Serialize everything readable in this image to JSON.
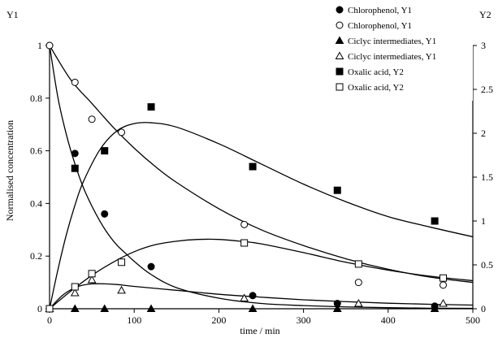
{
  "chart_data": {
    "type": "scatter",
    "xlabel": "time / min",
    "ylabel": "Normalised concentration",
    "y1_title": "Y1",
    "y2_title": "Y2",
    "xlim": [
      0,
      500
    ],
    "ylim": [
      0,
      1
    ],
    "y2lim": [
      0,
      3
    ],
    "x_ticks": [
      0,
      100,
      200,
      300,
      400,
      500
    ],
    "y_ticks": [
      0,
      0.2,
      0.4,
      0.6,
      0.8,
      1
    ],
    "y2_ticks": [
      0,
      0.5,
      1,
      1.5,
      2,
      2.5,
      3
    ],
    "x_tick_labels": [
      "0",
      "100",
      "200",
      "300",
      "400",
      "500"
    ],
    "y_tick_labels": [
      "0",
      "0.2",
      "0.4",
      "0.6",
      "0.8",
      "1"
    ],
    "y2_tick_labels": [
      "0",
      "0.5",
      "1",
      "1.5",
      "2",
      "2.5",
      "3"
    ],
    "grid": false,
    "legend_position": "top-right",
    "series": [
      {
        "name": "Chlorophenol, Y1",
        "axis": "y1",
        "marker": "circle-filled",
        "x": [
          0,
          30,
          65,
          120,
          240,
          340,
          455
        ],
        "y": [
          1.0,
          0.59,
          0.36,
          0.16,
          0.05,
          0.02,
          0.01
        ]
      },
      {
        "name": "Chlorophenol, Y1",
        "axis": "y1",
        "marker": "circle-open",
        "x": [
          0,
          30,
          50,
          85,
          230,
          365,
          465
        ],
        "y": [
          1.0,
          0.86,
          0.72,
          0.67,
          0.32,
          0.1,
          0.09
        ]
      },
      {
        "name": "Ciclyc intermediates, Y1",
        "axis": "y1",
        "marker": "triangle-filled",
        "x": [
          0,
          30,
          65,
          120,
          240,
          340,
          455
        ],
        "y": [
          0,
          0.0,
          0.0,
          0.0,
          0.0,
          0.0,
          0.0
        ]
      },
      {
        "name": "Ciclyc intermediates, Y1",
        "axis": "y1",
        "marker": "triangle-open",
        "x": [
          0,
          30,
          50,
          85,
          230,
          365,
          465
        ],
        "y": [
          0,
          0.06,
          0.11,
          0.07,
          0.04,
          0.02,
          0.02
        ]
      },
      {
        "name": "Oxalic acid, Y2",
        "axis": "y2",
        "marker": "square-filled",
        "x": [
          0,
          30,
          65,
          120,
          240,
          340,
          455
        ],
        "y": [
          0,
          1.6,
          1.8,
          2.3,
          1.62,
          1.35,
          1.0
        ]
      },
      {
        "name": "Oxalic acid, Y2",
        "axis": "y2",
        "marker": "square-open",
        "x": [
          0,
          30,
          50,
          85,
          230,
          365,
          465
        ],
        "y": [
          0,
          0.25,
          0.4,
          0.53,
          0.75,
          0.51,
          0.35
        ]
      }
    ],
    "fit_curves": [
      {
        "axis": "y1",
        "x": [
          0,
          10,
          20,
          30,
          40,
          50,
          60,
          70,
          80,
          90,
          100,
          120,
          150,
          200,
          250,
          300,
          350,
          400,
          450,
          500
        ],
        "y": [
          1.0,
          0.8,
          0.66,
          0.55,
          0.46,
          0.39,
          0.33,
          0.28,
          0.24,
          0.21,
          0.18,
          0.13,
          0.08,
          0.04,
          0.02,
          0.012,
          0.007,
          0.004,
          0.002,
          0.0015
        ]
      },
      {
        "axis": "y1",
        "x": [
          0,
          25,
          50,
          75,
          100,
          125,
          150,
          200,
          250,
          300,
          350,
          400,
          450,
          500
        ],
        "y": [
          1.0,
          0.87,
          0.78,
          0.69,
          0.61,
          0.54,
          0.48,
          0.38,
          0.3,
          0.24,
          0.19,
          0.15,
          0.12,
          0.1
        ]
      },
      {
        "axis": "y1",
        "x": [
          0,
          15,
          30,
          45,
          60,
          80,
          100,
          150,
          200,
          250,
          300,
          350,
          400,
          450,
          500
        ],
        "y": [
          0,
          0.05,
          0.08,
          0.093,
          0.095,
          0.092,
          0.085,
          0.07,
          0.055,
          0.044,
          0.034,
          0.027,
          0.021,
          0.017,
          0.014
        ]
      },
      {
        "axis": "y2",
        "x": [
          0,
          10,
          20,
          30,
          40,
          60,
          80,
          100,
          120,
          150,
          200,
          250,
          300,
          350,
          400,
          450,
          500
        ],
        "y": [
          0,
          0.45,
          0.85,
          1.18,
          1.45,
          1.82,
          2.03,
          2.11,
          2.12,
          2.07,
          1.88,
          1.65,
          1.42,
          1.22,
          1.05,
          0.93,
          0.82
        ]
      },
      {
        "axis": "y2",
        "x": [
          0,
          25,
          50,
          75,
          100,
          125,
          150,
          175,
          200,
          225,
          250,
          300,
          350,
          400,
          450,
          500
        ],
        "y": [
          0,
          0.2,
          0.38,
          0.53,
          0.65,
          0.73,
          0.77,
          0.79,
          0.79,
          0.77,
          0.74,
          0.64,
          0.53,
          0.44,
          0.37,
          0.32
        ]
      }
    ]
  }
}
